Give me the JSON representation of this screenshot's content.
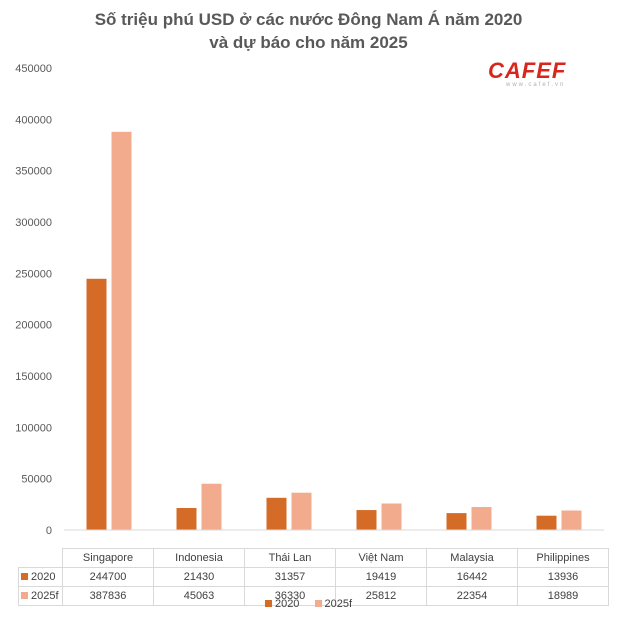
{
  "chart_data": {
    "type": "bar",
    "title": "Số triệu phú USD ở các nước Đông Nam Á năm 2020",
    "subtitle": "và dự báo cho năm 2025",
    "categories": [
      "Singapore",
      "Indonesia",
      "Thái Lan",
      "Việt Nam",
      "Malaysia",
      "Philippines"
    ],
    "series": [
      {
        "name": "2020",
        "color": "#d46b27",
        "values": [
          244700,
          21430,
          31357,
          19419,
          16442,
          13936
        ],
        "labels": [
          "244700",
          "21430",
          "31357",
          "19419",
          "16442",
          "13936"
        ]
      },
      {
        "name": "2025f",
        "color": "#f2ab8c",
        "values": [
          387836,
          45063,
          36330,
          25812,
          22354,
          18989
        ],
        "labels": [
          "387836",
          "45063",
          "36330",
          "25812",
          "22354",
          "18989"
        ]
      }
    ],
    "yticks": [
      "450000",
      "400000",
      "350000",
      "300000",
      "250000",
      "200000",
      "150000",
      "100000",
      "50000",
      "0"
    ],
    "ylim": [
      0,
      450000
    ],
    "xlabel": "",
    "ylabel": "",
    "legend_position": "bottom"
  },
  "logo": {
    "text": "CAFEF",
    "subtext": "www.cafef.vn"
  }
}
